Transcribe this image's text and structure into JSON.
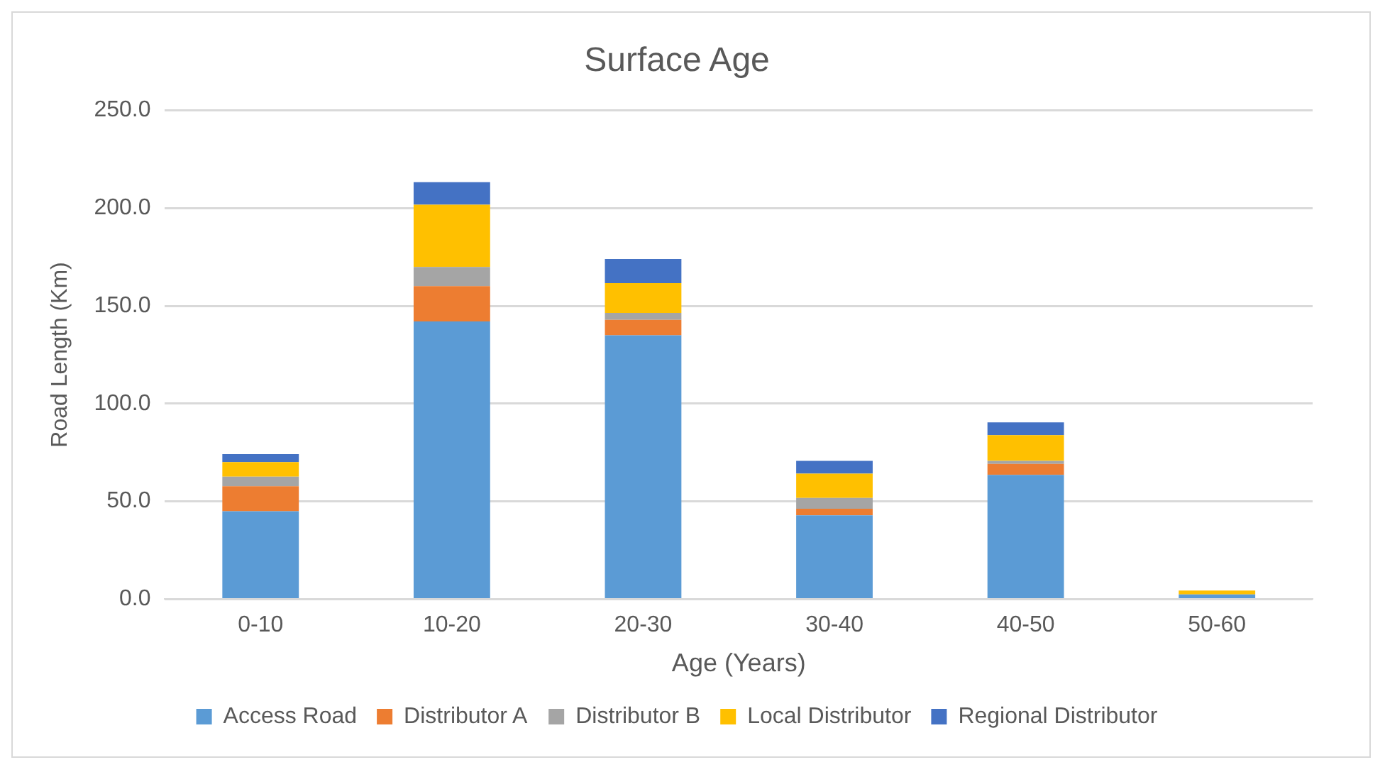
{
  "chart_data": {
    "type": "bar",
    "title": "Surface Age",
    "xlabel": "Age (Years)",
    "ylabel": "Road Length (Km)",
    "categories": [
      "0-10",
      "10-20",
      "20-30",
      "30-40",
      "40-50",
      "50-60"
    ],
    "stacked": true,
    "series": [
      {
        "name": "Access Road",
        "color": "#5b9bd5",
        "values": [
          45.0,
          142.1,
          135.0,
          42.9,
          63.6,
          2.4
        ]
      },
      {
        "name": "Distributor A",
        "color": "#ed7d31",
        "values": [
          12.8,
          18.0,
          7.9,
          3.3,
          5.6,
          0
        ]
      },
      {
        "name": "Distributor B",
        "color": "#a5a5a5",
        "values": [
          4.9,
          9.8,
          3.5,
          5.6,
          1.5,
          0
        ]
      },
      {
        "name": "Local Distributor",
        "color": "#ffc000",
        "values": [
          7.4,
          31.9,
          15.3,
          12.4,
          13.2,
          2.0
        ]
      },
      {
        "name": "Regional Distributor",
        "color": "#4472c4",
        "values": [
          4.1,
          11.5,
          12.3,
          6.5,
          6.5,
          0
        ]
      }
    ],
    "ylim": [
      0,
      250
    ],
    "yticks": [
      {
        "value": 0,
        "label": "0.0"
      },
      {
        "value": 50,
        "label": "50.0"
      },
      {
        "value": 100,
        "label": "100.0"
      },
      {
        "value": 150,
        "label": "150.0"
      },
      {
        "value": 200,
        "label": "200.0"
      },
      {
        "value": 250,
        "label": "250.0"
      }
    ],
    "grid": "y",
    "legend": "bottom"
  }
}
